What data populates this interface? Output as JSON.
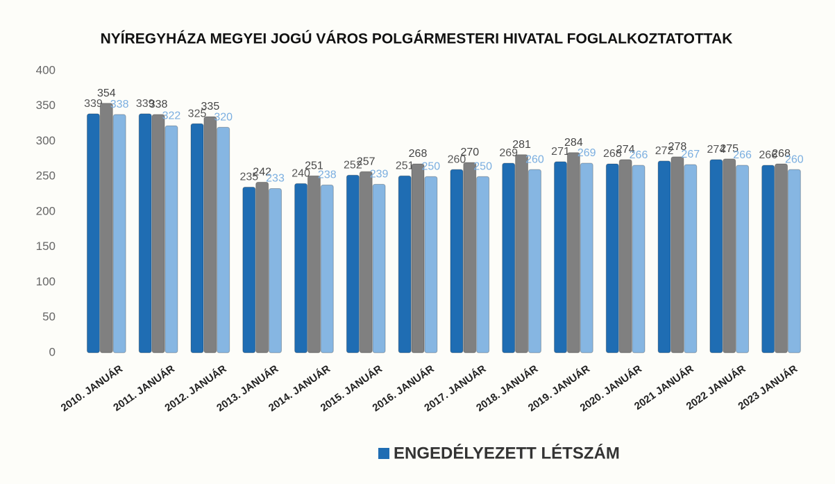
{
  "chart_data": {
    "type": "bar",
    "title": "NYÍREGYHÁZA MEGYEI JOGÚ VÁROS POLGÁRMESTERI HIVATAL FOGLALKOZTATOTTAK",
    "categories": [
      "2010. JANUÁR",
      "2011. JANUÁR",
      "2012. JANUÁR",
      "2013. JANUÁR",
      "2014. JANUÁR",
      "2015. JANUÁR",
      "2016. JANUÁR",
      "2017. JANUÁR",
      "2018. JANUÁR",
      "2019. JANUÁR",
      "2020. JANUÁR",
      "2021 JANUÁR",
      "2022 JANUÁR",
      "2023 JANUÁR"
    ],
    "series": [
      {
        "name": "ENGEDÉLYEZETT LÉTSZÁM",
        "color": "#1f6db3",
        "values": [
          339,
          339,
          325,
          235,
          240,
          252,
          251,
          260,
          269,
          271,
          268,
          272,
          274,
          266
        ]
      },
      {
        "color": "#808080",
        "values": [
          354,
          338,
          335,
          242,
          251,
          257,
          268,
          270,
          281,
          284,
          274,
          278,
          275,
          268
        ]
      },
      {
        "color": "#86b6e2",
        "values": [
          338,
          322,
          320,
          233,
          238,
          239,
          250,
          250,
          260,
          269,
          266,
          267,
          266,
          260
        ]
      }
    ],
    "ylim": [
      0,
      400
    ],
    "yticks": [
      0,
      50,
      100,
      150,
      200,
      250,
      300,
      350,
      400
    ],
    "grid": false
  }
}
